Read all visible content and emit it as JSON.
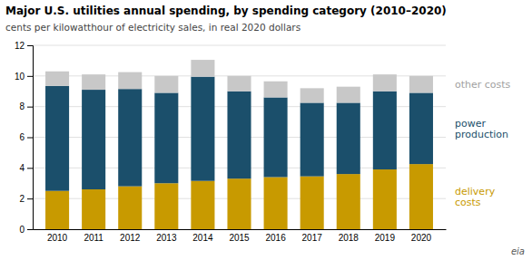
{
  "chart_data": {
    "type": "bar",
    "stacked": true,
    "title": "Major U.S. utilities annual spending, by spending category (2010–2020)",
    "subtitle": "cents per kilowatthour of electricity sales, in real 2020 dollars",
    "annotations": [
      "eia"
    ],
    "categories": [
      "2010",
      "2011",
      "2012",
      "2013",
      "2014",
      "2015",
      "2016",
      "2017",
      "2018",
      "2019",
      "2020"
    ],
    "series": [
      {
        "name": "delivery\ncosts",
        "color": "#C89A00",
        "values": [
          2.5,
          2.6,
          2.8,
          3.0,
          3.15,
          3.3,
          3.4,
          3.45,
          3.6,
          3.9,
          4.25
        ]
      },
      {
        "name": "power\nproduction",
        "color": "#1B4F6B",
        "values": [
          6.85,
          6.5,
          6.35,
          5.9,
          6.8,
          5.7,
          5.2,
          4.8,
          4.65,
          5.1,
          4.65
        ]
      },
      {
        "name": "other costs",
        "color": "#C8C8C8",
        "values": [
          0.95,
          1.0,
          1.1,
          1.1,
          1.1,
          1.0,
          1.05,
          0.95,
          1.05,
          1.1,
          1.1
        ]
      }
    ],
    "ylim": [
      0,
      12
    ],
    "yticks": [
      0,
      2,
      4,
      6,
      8,
      10,
      12
    ],
    "grid": true,
    "legend": "right"
  }
}
